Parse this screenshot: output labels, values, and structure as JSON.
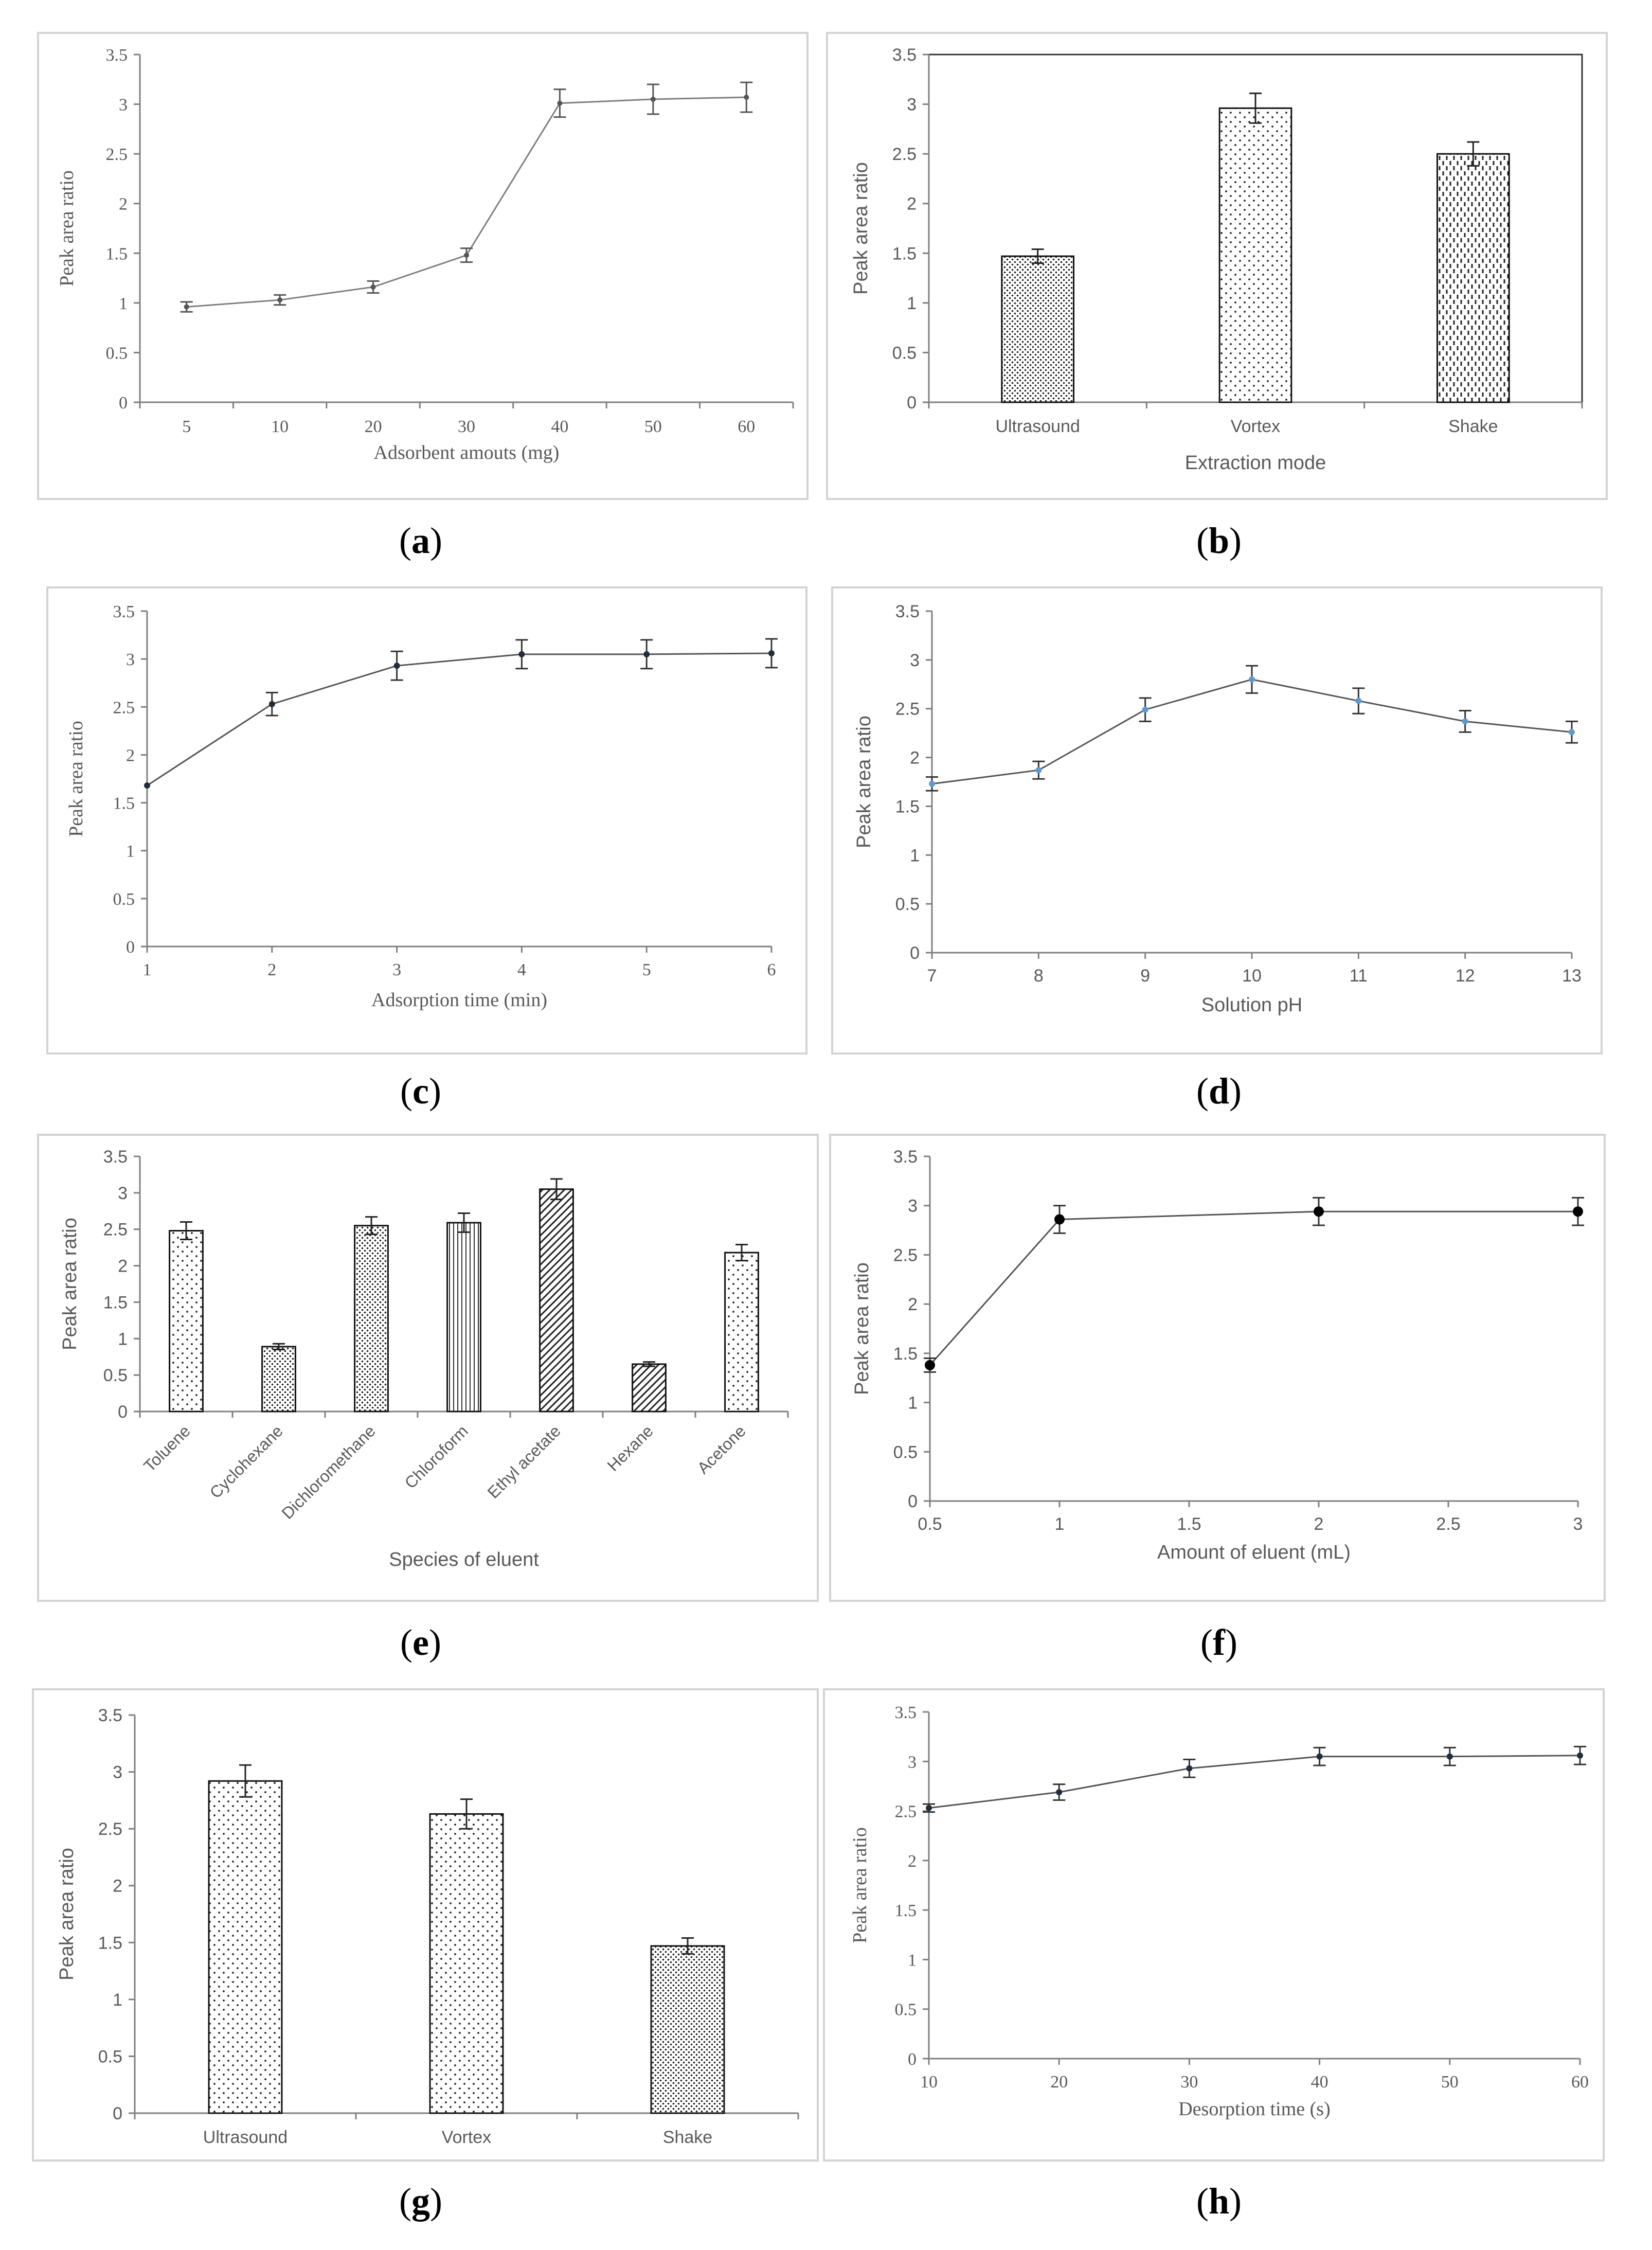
{
  "panels_caption_format": "({letter})",
  "colors": {
    "line": "#7f7f7f",
    "axis": "#7f7f7f",
    "text": "#595959",
    "frame": "#d3d3d3",
    "blue_marker": "#5b9bd5",
    "dark_marker": "#1f2d3d"
  },
  "chart_data": [
    {
      "id": "a",
      "caption": "a",
      "type": "line",
      "xlabel": "Adsorbent amouts (mg)",
      "ylabel": "Peak area ratio",
      "x_type": "category",
      "categories": [
        "5",
        "10",
        "20",
        "30",
        "40",
        "50",
        "60"
      ],
      "values": [
        0.96,
        1.03,
        1.16,
        1.48,
        3.01,
        3.05,
        3.07
      ],
      "errors": [
        0.05,
        0.05,
        0.06,
        0.07,
        0.14,
        0.15,
        0.15
      ],
      "ylim": [
        0,
        3.5
      ],
      "yticks": [
        "0",
        "0.5",
        "1",
        "1.5",
        "2",
        "2.5",
        "3",
        "3.5"
      ],
      "box": false,
      "marker": "dot-small",
      "font": "serif"
    },
    {
      "id": "b",
      "caption": "b",
      "type": "bar",
      "xlabel": "Extraction mode",
      "ylabel": "Peak area ratio",
      "categories": [
        "Ultrasound",
        "Vortex",
        "Shake"
      ],
      "values": [
        1.47,
        2.96,
        2.5
      ],
      "errors": [
        0.07,
        0.15,
        0.12
      ],
      "patterns": [
        "dense",
        "sparse",
        "dash"
      ],
      "ylim": [
        0,
        3.5
      ],
      "yticks": [
        "0",
        "0.5",
        "1",
        "1.5",
        "2",
        "2.5",
        "3",
        "3.5"
      ],
      "box": true,
      "font": "sans"
    },
    {
      "id": "c",
      "caption": "c",
      "type": "line",
      "xlabel": "Adsorption time (min)",
      "ylabel": "Peak area ratio",
      "x_type": "numeric",
      "x": [
        1,
        2,
        3,
        4,
        5,
        6
      ],
      "values": [
        1.68,
        2.53,
        2.93,
        3.05,
        3.05,
        3.06
      ],
      "errors": [
        0.0,
        0.12,
        0.15,
        0.15,
        0.15,
        0.15
      ],
      "xlim": [
        1,
        6
      ],
      "xticks": [
        "1",
        "2",
        "3",
        "4",
        "5",
        "6"
      ],
      "ylim": [
        0,
        3.5
      ],
      "yticks": [
        "0",
        "0.5",
        "1",
        "1.5",
        "2",
        "2.5",
        "3",
        "3.5"
      ],
      "box": false,
      "marker": "dot-dark",
      "font": "serif"
    },
    {
      "id": "d",
      "caption": "d",
      "type": "line",
      "xlabel": "Solution pH",
      "ylabel": "Peak area ratio",
      "x_type": "numeric",
      "x": [
        7,
        8,
        9,
        10,
        11,
        12,
        13
      ],
      "values": [
        1.73,
        1.87,
        2.49,
        2.8,
        2.58,
        2.37,
        2.26
      ],
      "errors": [
        0.07,
        0.09,
        0.12,
        0.14,
        0.13,
        0.11,
        0.11
      ],
      "xlim": [
        7,
        13
      ],
      "xticks": [
        "7",
        "8",
        "9",
        "10",
        "11",
        "12",
        "13"
      ],
      "ylim": [
        0,
        3.5
      ],
      "yticks": [
        "0",
        "0.5",
        "1",
        "1.5",
        "2",
        "2.5",
        "3",
        "3.5"
      ],
      "box": false,
      "marker": "dot-blue",
      "font": "sans"
    },
    {
      "id": "e",
      "caption": "e",
      "type": "bar",
      "xlabel": "Species of eluent",
      "ylabel": "Peak area ratio",
      "categories": [
        "Toluene",
        "Cyclohexane",
        "Dichloromethane",
        "Chloroform",
        "Ethyl acetate",
        "Hexane",
        "Acetone"
      ],
      "values": [
        2.48,
        0.89,
        2.55,
        2.59,
        3.05,
        0.65,
        2.18
      ],
      "errors": [
        0.12,
        0.04,
        0.12,
        0.13,
        0.14,
        0.03,
        0.11
      ],
      "patterns": [
        "sparse",
        "dense",
        "dense",
        "vlines",
        "diag",
        "diag",
        "sparse"
      ],
      "ylim": [
        0,
        3.5
      ],
      "yticks": [
        "0",
        "0.5",
        "1",
        "1.5",
        "2",
        "2.5",
        "3",
        "3.5"
      ],
      "box": false,
      "rotate_labels": true,
      "font": "sans"
    },
    {
      "id": "f",
      "caption": "f",
      "type": "line",
      "xlabel": "Amount of eluent (mL)",
      "ylabel": "Peak area ratio",
      "x_type": "numeric",
      "x": [
        0.5,
        1,
        2,
        3
      ],
      "values": [
        1.38,
        2.86,
        2.94,
        2.94
      ],
      "errors": [
        0.07,
        0.14,
        0.14,
        0.14
      ],
      "xlim": [
        0.5,
        3
      ],
      "xticks": [
        "0.5",
        "1",
        "1.5",
        "2",
        "2.5",
        "3"
      ],
      "ylim": [
        0,
        3.5
      ],
      "yticks": [
        "0",
        "0.5",
        "1",
        "1.5",
        "2",
        "2.5",
        "3",
        "3.5"
      ],
      "box": false,
      "marker": "dot-big",
      "font": "sans"
    },
    {
      "id": "g",
      "caption": "g",
      "type": "bar",
      "xlabel": "",
      "ylabel": "Peak area ratio",
      "categories": [
        "Ultrasound",
        "Vortex",
        "Shake"
      ],
      "values": [
        2.92,
        2.63,
        1.47
      ],
      "errors": [
        0.14,
        0.13,
        0.07
      ],
      "patterns": [
        "sparse",
        "sparse",
        "dense"
      ],
      "ylim": [
        0,
        3.5
      ],
      "yticks": [
        "0",
        "0.5",
        "1",
        "1.5",
        "2",
        "2.5",
        "3",
        "3.5"
      ],
      "box": false,
      "font": "sans"
    },
    {
      "id": "h",
      "caption": "h",
      "type": "line",
      "xlabel": "Desorption time (s)",
      "ylabel": "Peak area ratio",
      "x_type": "numeric",
      "x": [
        10,
        20,
        30,
        40,
        50,
        60
      ],
      "values": [
        2.53,
        2.69,
        2.93,
        3.05,
        3.05,
        3.06
      ],
      "errors": [
        0.04,
        0.08,
        0.09,
        0.09,
        0.09,
        0.09
      ],
      "xlim": [
        10,
        60
      ],
      "xticks": [
        "10",
        "20",
        "30",
        "40",
        "50",
        "60"
      ],
      "ylim": [
        0,
        3.5
      ],
      "yticks": [
        "0",
        "0.5",
        "1",
        "1.5",
        "2",
        "2.5",
        "3",
        "3.5"
      ],
      "box": false,
      "marker": "dot-dark",
      "font": "serif"
    }
  ]
}
